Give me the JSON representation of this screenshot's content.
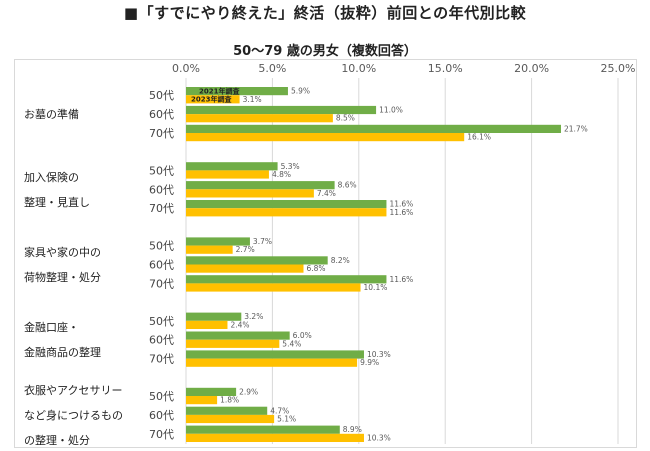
{
  "title": "■「すでにやり終えた」終活（抜粋）前回との年代別比較",
  "subtitle": "50〜79 歳の男女（複数回答）",
  "chart_data": {
    "type": "bar",
    "orientation": "horizontal",
    "xlim": [
      0,
      25
    ],
    "ticks": [
      "0.0%",
      "5.0%",
      "10.0%",
      "15.0%",
      "20.0%",
      "25.0%"
    ],
    "tick_values": [
      0,
      5,
      10,
      15,
      20,
      25
    ],
    "grid": true,
    "legend_placement": "inside bars of first row",
    "series": [
      {
        "name": "2021年調査",
        "color": "#70ad47"
      },
      {
        "name": "2023年調査",
        "color": "#ffc000"
      }
    ],
    "groups": [
      {
        "label_lines": [
          "お墓の準備"
        ],
        "rows": [
          {
            "age": "50代",
            "v2021": 5.9,
            "v2023": 3.1,
            "l2021": "5.9%",
            "l2023": "3.1%"
          },
          {
            "age": "60代",
            "v2021": 11.0,
            "v2023": 8.5,
            "l2021": "11.0%",
            "l2023": "8.5%"
          },
          {
            "age": "70代",
            "v2021": 21.7,
            "v2023": 16.1,
            "l2021": "21.7%",
            "l2023": "16.1%"
          }
        ]
      },
      {
        "label_lines": [
          "加入保険の",
          "整理・見直し"
        ],
        "rows": [
          {
            "age": "50代",
            "v2021": 5.3,
            "v2023": 4.8,
            "l2021": "5.3%",
            "l2023": "4.8%"
          },
          {
            "age": "60代",
            "v2021": 8.6,
            "v2023": 7.4,
            "l2021": "8.6%",
            "l2023": "7.4%"
          },
          {
            "age": "70代",
            "v2021": 11.6,
            "v2023": 11.6,
            "l2021": "11.6%",
            "l2023": "11.6%"
          }
        ]
      },
      {
        "label_lines": [
          "家具や家の中の",
          "荷物整理・処分"
        ],
        "rows": [
          {
            "age": "50代",
            "v2021": 3.7,
            "v2023": 2.7,
            "l2021": "3.7%",
            "l2023": "2.7%"
          },
          {
            "age": "60代",
            "v2021": 8.2,
            "v2023": 6.8,
            "l2021": "8.2%",
            "l2023": "6.8%"
          },
          {
            "age": "70代",
            "v2021": 11.6,
            "v2023": 10.1,
            "l2021": "11.6%",
            "l2023": "10.1%"
          }
        ]
      },
      {
        "label_lines": [
          "金融口座・",
          "金融商品の整理"
        ],
        "rows": [
          {
            "age": "50代",
            "v2021": 3.2,
            "v2023": 2.4,
            "l2021": "3.2%",
            "l2023": "2.4%"
          },
          {
            "age": "60代",
            "v2021": 6.0,
            "v2023": 5.4,
            "l2021": "6.0%",
            "l2023": "5.4%"
          },
          {
            "age": "70代",
            "v2021": 10.3,
            "v2023": 9.9,
            "l2021": "10.3%",
            "l2023": "9.9%"
          }
        ]
      },
      {
        "label_lines": [
          "衣服やアクセサリー",
          "など身につけるもの",
          "の整理・処分"
        ],
        "rows": [
          {
            "age": "50代",
            "v2021": 2.9,
            "v2023": 1.8,
            "l2021": "2.9%",
            "l2023": "1.8%"
          },
          {
            "age": "60代",
            "v2021": 4.7,
            "v2023": 5.1,
            "l2021": "4.7%",
            "l2023": "5.1%"
          },
          {
            "age": "70代",
            "v2021": 8.9,
            "v2023": 10.3,
            "l2021": "8.9%",
            "l2023": "10.3%"
          }
        ]
      }
    ]
  }
}
